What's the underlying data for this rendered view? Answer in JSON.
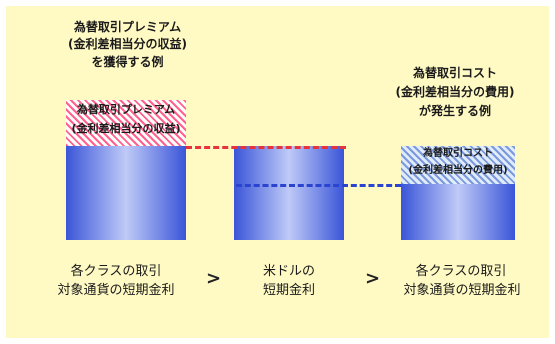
{
  "premium": {
    "title_line1": "為替取引プレミアム",
    "title_line2": "(金利差相当分の収益)",
    "title_line3": "を獲得する例",
    "box_line1": "為替取引プレミアム",
    "box_line2": "(金利差相当分の収益)"
  },
  "cost": {
    "title_line1": "為替取引コスト",
    "title_line2": "(金利差相当分の費用)",
    "title_line3": "が発生する例",
    "box_line1": "為替取引コスト",
    "box_line2": "(金利差相当分の費用)"
  },
  "labels": {
    "left_line1": "各クラスの取引",
    "left_line2": "対象通貨の短期金利",
    "middle_line1": "米ドルの",
    "middle_line2": "短期金利",
    "right_line1": "各クラスの取引",
    "right_line2": "対象通貨の短期金利",
    "gt1": ">",
    "gt2": ">"
  },
  "colors": {
    "background": "#fff9c4",
    "bar": "#3a55d8",
    "premium_dash": "#e8323c",
    "cost_dash": "#2a44d0"
  }
}
